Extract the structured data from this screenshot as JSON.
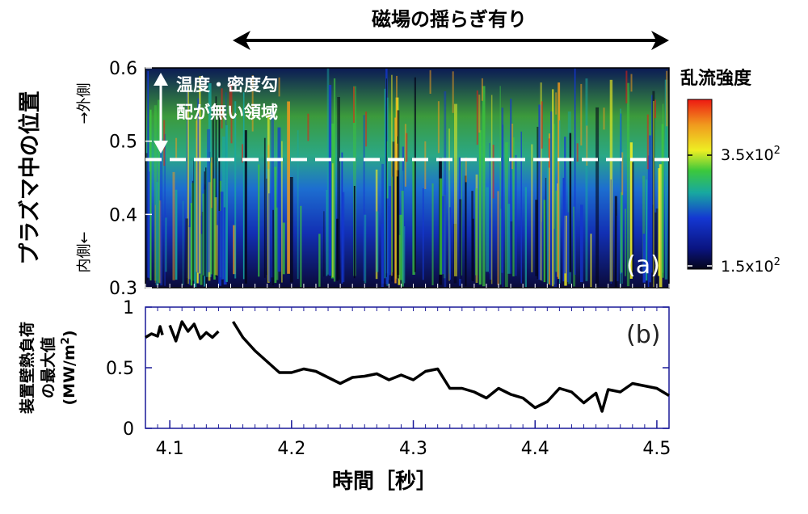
{
  "figure": {
    "banner": "磁場の揺らぎ有り",
    "xlabel": "時間［秒］",
    "x_ticks": [
      "4.1",
      "4.2",
      "4.3",
      "4.4",
      "4.5"
    ]
  },
  "panel_a": {
    "tag": "(a)",
    "ylabel": "プラズマ中の位置",
    "outer_label": "→外側",
    "inner_label": "内側←",
    "y_ticks": [
      "0.6",
      "0.5",
      "0.4",
      "0.3"
    ],
    "annotation_line1": "温度・密度勾",
    "annotation_line2": "配が無い領域",
    "colorbar_title": "乱流強度",
    "colorbar_high_base": "3.5x10",
    "colorbar_high_exp": "2",
    "colorbar_low_base": "1.5x10",
    "colorbar_low_exp": "2",
    "colors": {
      "dark": "#050519",
      "navy": "#0a1480",
      "blue": "#1437d2",
      "cyan": "#18a8a0",
      "green": "#3cc83c",
      "yellow": "#eeee23",
      "orange": "#f09a1e",
      "red": "#ee1a12"
    }
  },
  "panel_b": {
    "tag": "(b)",
    "ylabel_line1": "装置壁熱負荷",
    "ylabel_line2": "の最大値",
    "ylabel_unit_base": "(MW/m",
    "ylabel_unit_exp": "2",
    "ylabel_unit_close": ")",
    "y_ticks": [
      "1",
      "0.5",
      "0"
    ]
  },
  "chart_data": [
    {
      "type": "heatmap",
      "title": "",
      "xlabel": "時間［秒］",
      "ylabel": "プラズマ中の位置",
      "xlim": [
        4.08,
        4.51
      ],
      "ylim": [
        0.3,
        0.6
      ],
      "dashed_line_y": 0.475,
      "annotation_range_y": [
        0.475,
        0.59
      ],
      "banner_range_x": [
        4.15,
        4.51
      ],
      "colorbar": {
        "label": "乱流強度",
        "min": 150,
        "max": 450,
        "ticks": [
          150,
          350
        ],
        "scale": "linear"
      },
      "grid": false
    },
    {
      "type": "line",
      "title": "",
      "xlabel": "時間［秒］",
      "ylabel": "装置壁熱負荷の最大値 (MW/m2)",
      "xlim": [
        4.08,
        4.51
      ],
      "ylim": [
        0,
        1
      ],
      "segments": [
        {
          "x": [
            4.08,
            4.085,
            4.09,
            4.092,
            4.094
          ],
          "y": [
            0.75,
            0.78,
            0.76,
            0.84,
            0.77
          ]
        },
        {
          "x": [
            4.1,
            4.105,
            4.11,
            4.115,
            4.12,
            4.125,
            4.13,
            4.135,
            4.14
          ],
          "y": [
            0.85,
            0.72,
            0.88,
            0.8,
            0.86,
            0.74,
            0.79,
            0.75,
            0.8
          ]
        },
        {
          "x": [
            4.152,
            4.16,
            4.17,
            4.18,
            4.19,
            4.2,
            4.21,
            4.22,
            4.23,
            4.24,
            4.25,
            4.26,
            4.27,
            4.28,
            4.29,
            4.3,
            4.31,
            4.32,
            4.33,
            4.34,
            4.35,
            4.36,
            4.37,
            4.38,
            4.39,
            4.4,
            4.41,
            4.42,
            4.43,
            4.44,
            4.45,
            4.455,
            4.46,
            4.47,
            4.48,
            4.49,
            4.5,
            4.51
          ],
          "y": [
            0.88,
            0.75,
            0.64,
            0.55,
            0.46,
            0.46,
            0.49,
            0.47,
            0.42,
            0.37,
            0.42,
            0.43,
            0.45,
            0.4,
            0.44,
            0.4,
            0.47,
            0.49,
            0.33,
            0.33,
            0.3,
            0.25,
            0.33,
            0.28,
            0.25,
            0.17,
            0.22,
            0.33,
            0.3,
            0.21,
            0.29,
            0.14,
            0.32,
            0.3,
            0.37,
            0.35,
            0.33,
            0.27
          ]
        }
      ],
      "grid": false
    }
  ]
}
